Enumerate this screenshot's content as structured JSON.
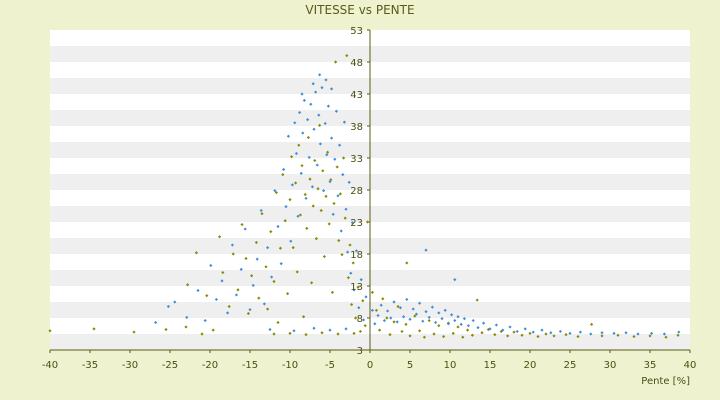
{
  "chart_data": {
    "type": "scatter",
    "title": "VITESSE vs PENTE",
    "xlabel": "Pente [%]",
    "ylabel": "",
    "xlim": [
      -40,
      40
    ],
    "ylim": [
      3,
      53
    ],
    "x_ticks": [
      "-40",
      "-35",
      "-30",
      "-25",
      "-20",
      "-15",
      "-10",
      "-5",
      "0",
      "5",
      "10",
      "15",
      "20",
      "25",
      "30",
      "35",
      "40"
    ],
    "y_ticks": [
      "53",
      "48",
      "43",
      "38",
      "33",
      "28",
      "23",
      "18",
      "13",
      "8",
      "3"
    ],
    "grid": "horizontal alternating bands",
    "legend": "none",
    "colors": {
      "background": "#eef2cf",
      "plot_light": "#ffffff",
      "plot_band": "#efefef",
      "axis": "#5b5b16",
      "series_1": "#8a8a00",
      "series_2": "#3e8fd8"
    },
    "series": [
      {
        "color": "#8a8a00",
        "marker": "diamond",
        "points": [
          [
            -40,
            6.0
          ],
          [
            -34.5,
            6.3
          ],
          [
            -29.5,
            5.8
          ],
          [
            -25.5,
            6.2
          ],
          [
            -23,
            6.6
          ],
          [
            -21,
            5.5
          ],
          [
            -19.6,
            6.1
          ],
          [
            -22.8,
            13.2
          ],
          [
            -21.7,
            18.2
          ],
          [
            -20.4,
            11.5
          ],
          [
            -18.8,
            20.7
          ],
          [
            -18.4,
            15.1
          ],
          [
            -17.6,
            9.8
          ],
          [
            -17.1,
            18.0
          ],
          [
            -16.5,
            12.4
          ],
          [
            -16.0,
            22.6
          ],
          [
            -15.5,
            17.3
          ],
          [
            -15.2,
            8.7
          ],
          [
            -14.8,
            14.6
          ],
          [
            -14.2,
            19.8
          ],
          [
            -13.9,
            11.1
          ],
          [
            -13.5,
            24.3
          ],
          [
            -13.0,
            16.0
          ],
          [
            -12.8,
            9.4
          ],
          [
            -12.4,
            21.5
          ],
          [
            -12.0,
            13.7
          ],
          [
            -11.7,
            27.6
          ],
          [
            -11.5,
            7.3
          ],
          [
            -11.2,
            18.9
          ],
          [
            -10.9,
            30.4
          ],
          [
            -10.6,
            23.2
          ],
          [
            -10.3,
            11.8
          ],
          [
            -10.0,
            26.5
          ],
          [
            -9.8,
            33.2
          ],
          [
            -9.6,
            19.0
          ],
          [
            -9.3,
            29.1
          ],
          [
            -9.1,
            15.2
          ],
          [
            -8.9,
            35.0
          ],
          [
            -8.7,
            24.1
          ],
          [
            -8.5,
            31.8
          ],
          [
            -8.3,
            8.2
          ],
          [
            -8.1,
            27.3
          ],
          [
            -7.9,
            22.0
          ],
          [
            -7.7,
            36.2
          ],
          [
            -7.5,
            29.7
          ],
          [
            -7.3,
            13.5
          ],
          [
            -7.1,
            25.5
          ],
          [
            -6.9,
            32.6
          ],
          [
            -6.7,
            20.4
          ],
          [
            -6.5,
            28.2
          ],
          [
            -6.3,
            38.1
          ],
          [
            -6.1,
            24.8
          ],
          [
            -5.9,
            31.0
          ],
          [
            -5.7,
            17.6
          ],
          [
            -5.5,
            27.0
          ],
          [
            -5.3,
            33.9
          ],
          [
            -5.1,
            22.7
          ],
          [
            -4.9,
            29.6
          ],
          [
            -4.7,
            12.0
          ],
          [
            -4.5,
            25.9
          ],
          [
            -4.3,
            48.0
          ],
          [
            -4.1,
            31.6
          ],
          [
            -3.9,
            20.1
          ],
          [
            -3.7,
            27.4
          ],
          [
            -3.5,
            17.9
          ],
          [
            -3.3,
            33.0
          ],
          [
            -3.1,
            23.6
          ],
          [
            -2.9,
            49.0
          ],
          [
            -2.7,
            14.3
          ],
          [
            -2.5,
            19.4
          ],
          [
            -2.3,
            10.1
          ],
          [
            -2.1,
            16.6
          ],
          [
            -1.8,
            8.0
          ],
          [
            -1.5,
            12.8
          ],
          [
            -1.2,
            5.9
          ],
          [
            -0.9,
            10.7
          ],
          [
            -0.6,
            6.8
          ],
          [
            -0.3,
            23.0
          ],
          [
            -12.0,
            5.5
          ],
          [
            -10.0,
            5.6
          ],
          [
            -8.0,
            5.4
          ],
          [
            -6.0,
            5.7
          ],
          [
            -4.0,
            5.5
          ],
          [
            -2.0,
            5.6
          ],
          [
            0.3,
            12.0
          ],
          [
            0.8,
            9.2
          ],
          [
            1.2,
            6.1
          ],
          [
            1.6,
            11.0
          ],
          [
            2.1,
            8.0
          ],
          [
            2.5,
            5.4
          ],
          [
            3.0,
            7.4
          ],
          [
            3.5,
            9.8
          ],
          [
            4.0,
            5.9
          ],
          [
            4.5,
            7.0
          ],
          [
            5.0,
            5.2
          ],
          [
            5.6,
            8.3
          ],
          [
            6.2,
            6.0
          ],
          [
            6.8,
            5.0
          ],
          [
            7.4,
            7.6
          ],
          [
            8.0,
            5.5
          ],
          [
            8.6,
            6.8
          ],
          [
            9.2,
            5.1
          ],
          [
            9.8,
            7.2
          ],
          [
            10.4,
            5.6
          ],
          [
            11.0,
            6.6
          ],
          [
            11.6,
            5.0
          ],
          [
            12.2,
            6.1
          ],
          [
            12.8,
            5.3
          ],
          [
            13.4,
            10.8
          ],
          [
            14.0,
            5.7
          ],
          [
            14.8,
            6.2
          ],
          [
            15.6,
            5.4
          ],
          [
            16.4,
            5.9
          ],
          [
            17.2,
            5.2
          ],
          [
            18.0,
            5.8
          ],
          [
            19.0,
            5.3
          ],
          [
            20.0,
            5.6
          ],
          [
            21.0,
            5.1
          ],
          [
            22.0,
            5.5
          ],
          [
            23.0,
            5.2
          ],
          [
            24.5,
            5.4
          ],
          [
            26.0,
            5.1
          ],
          [
            27.7,
            7.0
          ],
          [
            29.0,
            5.2
          ],
          [
            31.0,
            5.3
          ],
          [
            33.0,
            5.1
          ],
          [
            35.0,
            5.2
          ],
          [
            37.0,
            5.0
          ],
          [
            38.5,
            5.3
          ],
          [
            4.6,
            16.6
          ]
        ]
      },
      {
        "color": "#3e8fd8",
        "marker": "diamond",
        "points": [
          [
            -26.8,
            7.3
          ],
          [
            -25.2,
            9.8
          ],
          [
            -24.4,
            10.5
          ],
          [
            -22.9,
            8.1
          ],
          [
            -21.5,
            12.3
          ],
          [
            -20.6,
            7.6
          ],
          [
            -19.9,
            16.2
          ],
          [
            -19.2,
            10.9
          ],
          [
            -18.5,
            13.8
          ],
          [
            -17.8,
            8.8
          ],
          [
            -17.2,
            19.4
          ],
          [
            -16.7,
            11.6
          ],
          [
            -16.1,
            15.6
          ],
          [
            -15.6,
            21.9
          ],
          [
            -15.0,
            9.3
          ],
          [
            -14.6,
            13.1
          ],
          [
            -14.1,
            17.2
          ],
          [
            -13.6,
            24.8
          ],
          [
            -13.2,
            10.2
          ],
          [
            -12.8,
            19.0
          ],
          [
            -12.3,
            14.4
          ],
          [
            -11.9,
            27.9
          ],
          [
            -11.5,
            22.3
          ],
          [
            -11.1,
            16.5
          ],
          [
            -10.8,
            31.2
          ],
          [
            -10.5,
            25.4
          ],
          [
            -10.2,
            36.4
          ],
          [
            -9.9,
            20.0
          ],
          [
            -9.7,
            28.8
          ],
          [
            -9.4,
            38.5
          ],
          [
            -9.2,
            33.7
          ],
          [
            -9.0,
            23.9
          ],
          [
            -8.8,
            40.1
          ],
          [
            -8.6,
            30.6
          ],
          [
            -8.4,
            36.9
          ],
          [
            -8.2,
            42.0
          ],
          [
            -8.0,
            26.7
          ],
          [
            -7.8,
            39.0
          ],
          [
            -7.6,
            33.1
          ],
          [
            -7.4,
            41.4
          ],
          [
            -7.2,
            28.5
          ],
          [
            -7.0,
            37.5
          ],
          [
            -6.8,
            43.3
          ],
          [
            -6.6,
            31.9
          ],
          [
            -6.4,
            39.7
          ],
          [
            -6.2,
            35.2
          ],
          [
            -6.0,
            44.0
          ],
          [
            -5.8,
            27.9
          ],
          [
            -5.6,
            38.4
          ],
          [
            -5.4,
            33.5
          ],
          [
            -5.2,
            41.1
          ],
          [
            -5.0,
            29.3
          ],
          [
            -4.8,
            36.1
          ],
          [
            -4.6,
            24.2
          ],
          [
            -4.4,
            32.8
          ],
          [
            -4.2,
            40.3
          ],
          [
            -4.0,
            27.1
          ],
          [
            -3.8,
            35.0
          ],
          [
            -3.6,
            21.6
          ],
          [
            -3.4,
            30.4
          ],
          [
            -3.2,
            38.6
          ],
          [
            -3.0,
            25.0
          ],
          [
            -2.8,
            18.3
          ],
          [
            -2.6,
            29.2
          ],
          [
            -2.4,
            15.0
          ],
          [
            -2.2,
            22.9
          ],
          [
            -2.0,
            12.4
          ],
          [
            -1.7,
            18.5
          ],
          [
            -1.4,
            9.6
          ],
          [
            -1.1,
            14.0
          ],
          [
            -0.8,
            7.7
          ],
          [
            -0.5,
            11.3
          ],
          [
            -12.5,
            6.2
          ],
          [
            -9.5,
            6.0
          ],
          [
            -7.0,
            6.4
          ],
          [
            -5.0,
            6.1
          ],
          [
            -3.0,
            6.3
          ],
          [
            0.3,
            9.2
          ],
          [
            0.6,
            7.1
          ],
          [
            1.0,
            8.4
          ],
          [
            1.4,
            10.0
          ],
          [
            1.8,
            7.6
          ],
          [
            2.2,
            9.1
          ],
          [
            2.6,
            8.0
          ],
          [
            3.0,
            10.5
          ],
          [
            3.4,
            7.4
          ],
          [
            3.8,
            9.6
          ],
          [
            4.2,
            8.2
          ],
          [
            4.6,
            10.9
          ],
          [
            5.0,
            7.8
          ],
          [
            5.4,
            9.4
          ],
          [
            5.8,
            8.6
          ],
          [
            6.2,
            10.3
          ],
          [
            6.6,
            7.5
          ],
          [
            7.0,
            9.0
          ],
          [
            7.4,
            8.1
          ],
          [
            7.8,
            9.7
          ],
          [
            8.2,
            7.3
          ],
          [
            8.6,
            8.8
          ],
          [
            9.0,
            7.9
          ],
          [
            9.4,
            9.2
          ],
          [
            9.8,
            7.1
          ],
          [
            10.2,
            8.5
          ],
          [
            10.6,
            7.6
          ],
          [
            11.0,
            8.2
          ],
          [
            11.4,
            7.0
          ],
          [
            11.8,
            7.9
          ],
          [
            12.3,
            6.8
          ],
          [
            12.9,
            7.6
          ],
          [
            13.5,
            6.5
          ],
          [
            14.2,
            7.2
          ],
          [
            15.0,
            6.3
          ],
          [
            15.8,
            6.9
          ],
          [
            16.6,
            6.1
          ],
          [
            17.5,
            6.6
          ],
          [
            18.4,
            5.9
          ],
          [
            19.4,
            6.3
          ],
          [
            20.4,
            5.8
          ],
          [
            21.5,
            6.1
          ],
          [
            22.6,
            5.7
          ],
          [
            23.8,
            5.9
          ],
          [
            25.0,
            5.6
          ],
          [
            26.3,
            5.8
          ],
          [
            27.6,
            5.5
          ],
          [
            29.0,
            5.7
          ],
          [
            30.5,
            5.6
          ],
          [
            32.0,
            5.7
          ],
          [
            33.5,
            5.5
          ],
          [
            35.2,
            5.6
          ],
          [
            36.8,
            5.5
          ],
          [
            38.6,
            5.8
          ],
          [
            7.0,
            18.6
          ],
          [
            10.6,
            14.0
          ],
          [
            -6.3,
            46.0
          ],
          [
            -5.5,
            45.2
          ],
          [
            -7.1,
            44.6
          ],
          [
            -4.8,
            43.8
          ],
          [
            -8.5,
            43.0
          ]
        ]
      }
    ]
  }
}
